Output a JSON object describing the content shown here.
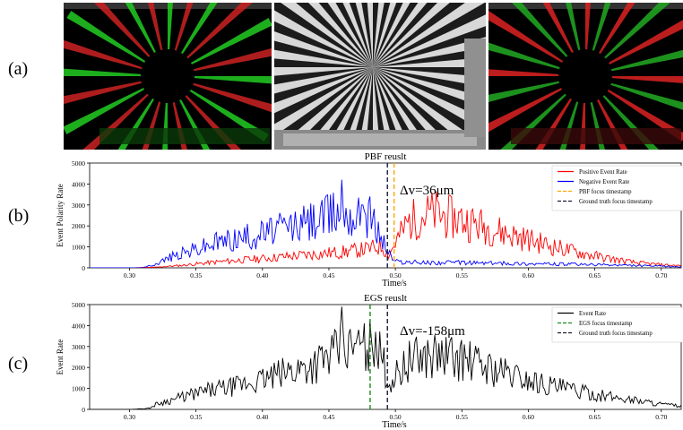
{
  "labels": {
    "a": "(a)",
    "b": "(b)",
    "c": "(c)"
  },
  "images": [
    {
      "name": "event-frame-green-red",
      "description_icon": "starburst-events-icon"
    },
    {
      "name": "grayscale-siemens-star",
      "description_icon": "siemens-star-icon"
    },
    {
      "name": "event-frame-red-green",
      "description_icon": "starburst-events-icon"
    }
  ],
  "chart_data": [
    {
      "type": "line",
      "title": "PBF reuslt",
      "xlabel": "Time/s",
      "ylabel": "Event Polarity Rate",
      "xlim": [
        0.27,
        0.715
      ],
      "ylim": [
        0,
        5000
      ],
      "xticks": [
        0.3,
        0.35,
        0.4,
        0.45,
        0.5,
        0.55,
        0.6,
        0.65,
        0.7
      ],
      "yticks": [
        0,
        1000,
        2000,
        3000,
        4000,
        5000
      ],
      "grid": false,
      "legend_position": "top-right",
      "annotation": "Δv=36μm",
      "series": [
        {
          "name": "Positive Event Rate",
          "color": "#ff0000",
          "x": [
            0.27,
            0.3,
            0.32,
            0.34,
            0.36,
            0.38,
            0.4,
            0.42,
            0.44,
            0.46,
            0.48,
            0.49,
            0.495,
            0.5,
            0.51,
            0.52,
            0.53,
            0.54,
            0.55,
            0.56,
            0.57,
            0.58,
            0.6,
            0.62,
            0.64,
            0.66,
            0.68,
            0.7,
            0.715
          ],
          "y": [
            0,
            0,
            30,
            120,
            250,
            350,
            450,
            550,
            650,
            750,
            900,
            1050,
            600,
            1200,
            2200,
            2500,
            2600,
            2400,
            2300,
            2100,
            1900,
            1700,
            1350,
            1000,
            700,
            450,
            250,
            150,
            100
          ]
        },
        {
          "name": "Negative Event Rate",
          "color": "#0000ff",
          "x": [
            0.27,
            0.31,
            0.32,
            0.33,
            0.35,
            0.37,
            0.39,
            0.41,
            0.43,
            0.45,
            0.46,
            0.47,
            0.48,
            0.49,
            0.495,
            0.5,
            0.52,
            0.55,
            0.6,
            0.65,
            0.7,
            0.715
          ],
          "y": [
            0,
            0,
            200,
            500,
            900,
            1300,
            1500,
            1800,
            2100,
            2500,
            2900,
            2400,
            2600,
            1400,
            700,
            300,
            250,
            250,
            200,
            150,
            80,
            50
          ]
        },
        {
          "name": "PBF focus timestamp",
          "color": "#ffa500",
          "style": "dashed",
          "x": [
            0.499,
            0.499
          ],
          "y": [
            0,
            5000
          ]
        },
        {
          "name": "Ground truth focus timestamp",
          "color": "#1a1a3a",
          "style": "dashed",
          "x": [
            0.494,
            0.494
          ],
          "y": [
            0,
            5000
          ]
        }
      ],
      "spikes": [
        {
          "x": 0.46,
          "y": 4200
        },
        {
          "x": 0.475,
          "y": 3000
        },
        {
          "x": 0.48,
          "y": 3100
        }
      ]
    },
    {
      "type": "line",
      "title": "EGS reuslt",
      "xlabel": "Time/s",
      "ylabel": "Event Rate",
      "xlim": [
        0.27,
        0.715
      ],
      "ylim": [
        0,
        5000
      ],
      "xticks": [
        0.3,
        0.35,
        0.4,
        0.45,
        0.5,
        0.55,
        0.6,
        0.65,
        0.7
      ],
      "yticks": [
        0,
        1000,
        2000,
        3000,
        4000,
        5000
      ],
      "grid": false,
      "legend_position": "top-right",
      "annotation": "Δv=-158μm",
      "series": [
        {
          "name": "Event Rate",
          "color": "#000000",
          "x": [
            0.27,
            0.3,
            0.315,
            0.32,
            0.34,
            0.36,
            0.38,
            0.4,
            0.42,
            0.44,
            0.45,
            0.46,
            0.47,
            0.48,
            0.49,
            0.495,
            0.5,
            0.51,
            0.52,
            0.53,
            0.55,
            0.57,
            0.6,
            0.62,
            0.65,
            0.68,
            0.7,
            0.715
          ],
          "y": [
            0,
            0,
            50,
            250,
            600,
            900,
            1100,
            1400,
            1800,
            2200,
            2500,
            2800,
            2900,
            3100,
            2500,
            1200,
            1600,
            2300,
            2500,
            2600,
            2400,
            2000,
            1400,
            1100,
            700,
            450,
            250,
            150
          ]
        },
        {
          "name": "EGS focus timestamp",
          "color": "#1a8a1a",
          "style": "dashed",
          "x": [
            0.481,
            0.481
          ],
          "y": [
            0,
            5000
          ]
        },
        {
          "name": "Ground truth focus timestamp",
          "color": "#1a1a3a",
          "style": "dashed",
          "x": [
            0.494,
            0.494
          ],
          "y": [
            0,
            5000
          ]
        }
      ],
      "spikes": [
        {
          "x": 0.46,
          "y": 4900
        },
        {
          "x": 0.485,
          "y": 3700
        },
        {
          "x": 0.475,
          "y": 3200
        }
      ]
    }
  ]
}
